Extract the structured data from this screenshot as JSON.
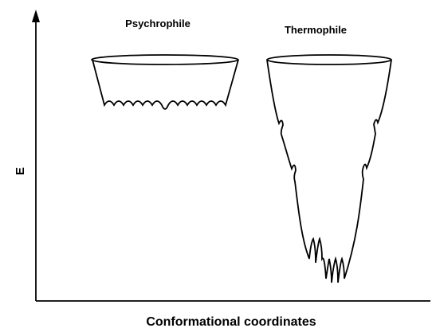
{
  "labels": {
    "psychrophile": "Psychrophile",
    "thermophile": "Thermophile",
    "y_axis": "E",
    "x_axis": "Conformational coordinates"
  }
}
